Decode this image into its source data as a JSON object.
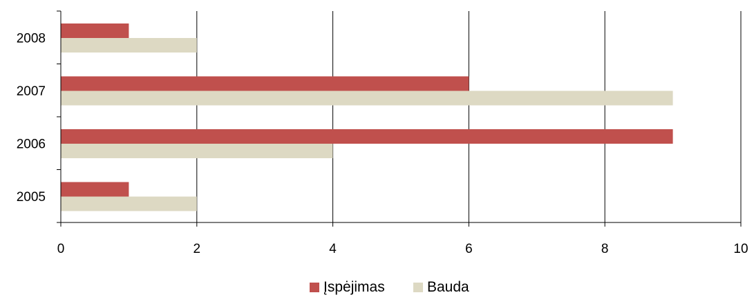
{
  "chart_data": {
    "type": "bar",
    "orientation": "horizontal",
    "categories": [
      "2005",
      "2006",
      "2007",
      "2008"
    ],
    "series": [
      {
        "name": "Įspėjimas",
        "values": [
          1,
          9,
          6,
          1
        ],
        "color": "#c0504d"
      },
      {
        "name": "Bauda",
        "values": [
          2,
          4,
          9,
          2
        ],
        "color": "#ddd9c3"
      }
    ],
    "xlim": [
      0,
      10
    ],
    "x_ticks": [
      "0",
      "2",
      "4",
      "6",
      "8",
      "10"
    ],
    "title": "",
    "xlabel": "",
    "ylabel": "",
    "grid": "vertical",
    "legend_position": "bottom"
  }
}
